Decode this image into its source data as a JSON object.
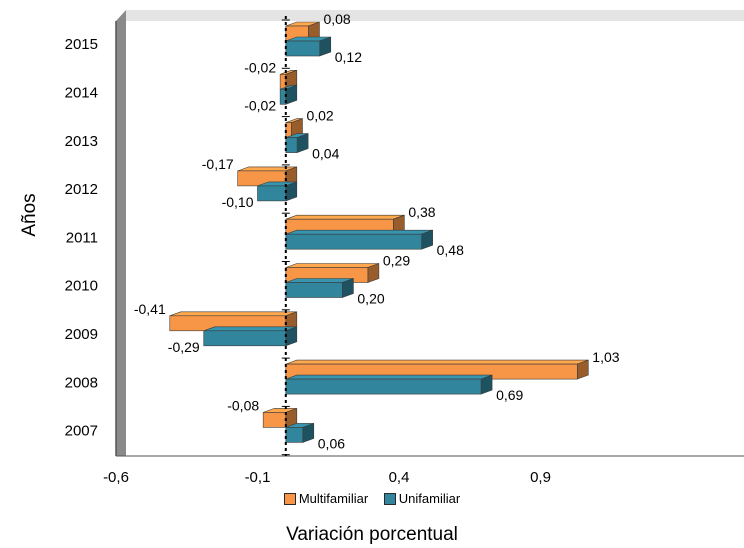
{
  "chart_data": {
    "type": "bar",
    "orientation": "horizontal",
    "categories": [
      "2015",
      "2014",
      "2013",
      "2012",
      "2011",
      "2010",
      "2009",
      "2008",
      "2007"
    ],
    "series": [
      {
        "name": "Multifamiliar",
        "color": "#f79646",
        "values": [
          0.08,
          -0.02,
          0.02,
          -0.17,
          0.38,
          0.29,
          -0.41,
          1.03,
          -0.08
        ],
        "labels": [
          "0,08",
          "-0,02",
          "0,02",
          "-0,17",
          "0,38",
          "0,29",
          "-0,41",
          "1,03",
          "-0,08"
        ]
      },
      {
        "name": "Unifamiliar",
        "color": "#31859c",
        "values": [
          0.12,
          -0.02,
          0.04,
          -0.1,
          0.48,
          0.2,
          -0.29,
          0.69,
          0.06
        ],
        "labels": [
          "0,12",
          "-0,02",
          "0,04",
          "-0,10",
          "0,48",
          "0,20",
          "-0,29",
          "0,69",
          "0,06"
        ]
      }
    ],
    "xlim": [
      -0.6,
      1.4
    ],
    "xticks": [
      -0.6,
      -0.1,
      0.4,
      0.9
    ],
    "xtick_labels": [
      "-0,6",
      "-0,1",
      "0,4",
      "0,9"
    ],
    "xlabel": "Variación porcentual",
    "ylabel": "Años",
    "legend_position": "bottom",
    "grid": false,
    "effect": "3d"
  }
}
